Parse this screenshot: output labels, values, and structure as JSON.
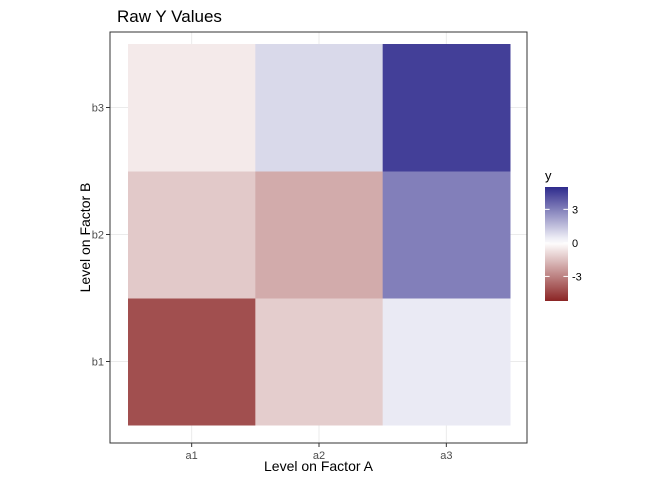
{
  "chart_data": {
    "type": "heatmap",
    "title": "Raw Y Values",
    "xlabel": "Level on Factor A",
    "ylabel": "Level on Factor B",
    "x_categories": [
      "a1",
      "a2",
      "a3"
    ],
    "y_categories": [
      "b1",
      "b2",
      "b3"
    ],
    "values": [
      {
        "x": "a1",
        "y": "b1",
        "value": -4.2
      },
      {
        "x": "a2",
        "y": "b1",
        "value": -1.2
      },
      {
        "x": "a3",
        "y": "b1",
        "value": 0.5
      },
      {
        "x": "a1",
        "y": "b2",
        "value": -1.3
      },
      {
        "x": "a2",
        "y": "b2",
        "value": -2.0
      },
      {
        "x": "a3",
        "y": "b2",
        "value": 3.0
      },
      {
        "x": "a1",
        "y": "b3",
        "value": -0.5
      },
      {
        "x": "a2",
        "y": "b3",
        "value": 0.9
      },
      {
        "x": "a3",
        "y": "b3",
        "value": 4.5
      }
    ],
    "legend": {
      "title": "y",
      "ticks": [
        3,
        0,
        -3
      ],
      "tick_labels": [
        "3",
        "0",
        "-3"
      ],
      "range": [
        -5.2,
        5.0
      ],
      "low_color": "#8b2525",
      "mid_color": "#ffffff",
      "high_color": "#2e2a8c",
      "position": "right"
    },
    "grid": true,
    "background": "white"
  }
}
